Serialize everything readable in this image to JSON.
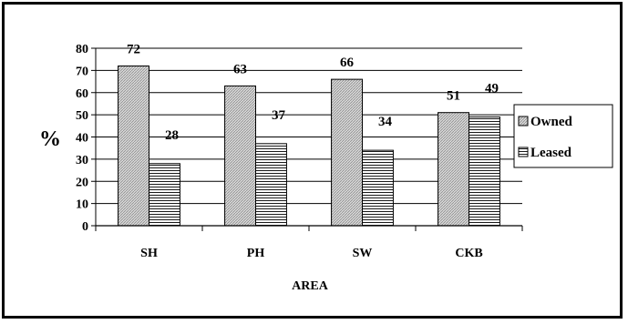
{
  "chart_data": {
    "type": "bar",
    "title": "",
    "xlabel": "AREA",
    "ylabel": "%",
    "ylim": [
      0,
      80
    ],
    "yticks": [
      0,
      10,
      20,
      30,
      40,
      50,
      60,
      70,
      80
    ],
    "grid": true,
    "legend_position": "right",
    "categories": [
      "SH",
      "PH",
      "SW",
      "CKB"
    ],
    "series": [
      {
        "name": "Owned",
        "values": [
          72,
          63,
          66,
          51
        ],
        "pattern": "diagonal-gray",
        "data_labels": [
          "72",
          "63",
          "66",
          "51"
        ]
      },
      {
        "name": "Leased",
        "values": [
          28,
          37,
          34,
          49
        ],
        "pattern": "horizontal-lines",
        "data_labels": [
          "28",
          "37",
          "34",
          "49"
        ]
      }
    ]
  }
}
